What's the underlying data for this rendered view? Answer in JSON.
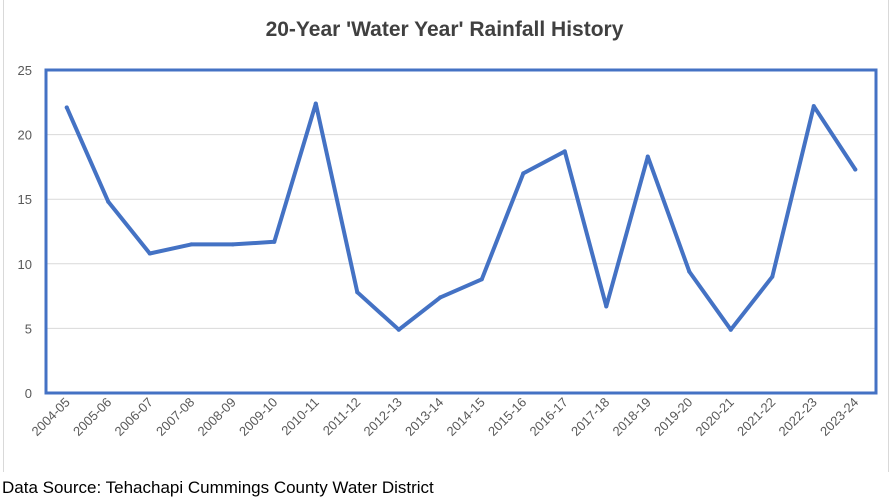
{
  "chart_data": {
    "type": "line",
    "title": "20-Year 'Water Year' Rainfall History",
    "xlabel": "",
    "ylabel": "",
    "ylim": [
      0,
      25
    ],
    "yticks": [
      0,
      5,
      10,
      15,
      20,
      25
    ],
    "grid": true,
    "legend": "none",
    "categories": [
      "2004-05",
      "2005-06",
      "2006-07",
      "2007-08",
      "2008-09",
      "2009-10",
      "2010-11",
      "2011-12",
      "2012-13",
      "2013-14",
      "2014-15",
      "2015-16",
      "2016-17",
      "2017-18",
      "2018-19",
      "2019-20",
      "2020-21",
      "2021-22",
      "2022-23",
      "2023-24"
    ],
    "series": [
      {
        "values": [
          22.1,
          14.8,
          10.8,
          11.5,
          11.5,
          11.7,
          22.4,
          7.8,
          4.9,
          7.4,
          8.8,
          17.0,
          18.7,
          6.7,
          18.3,
          9.4,
          4.9,
          9.0,
          22.2,
          17.3
        ],
        "color": "#4472c4"
      }
    ],
    "plot_border_color": "#4472c4"
  },
  "footer": {
    "source": "Data Source: Tehachapi Cummings County Water District"
  }
}
